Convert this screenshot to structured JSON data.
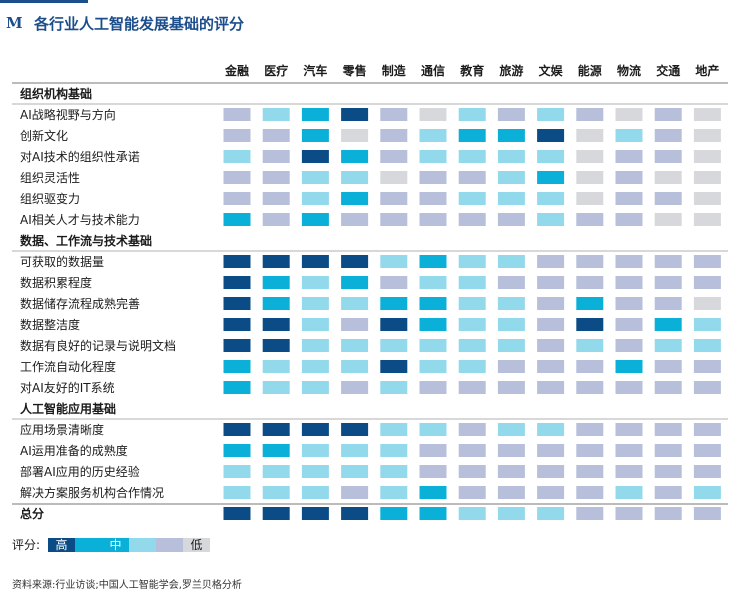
{
  "header": {
    "logo": "M",
    "title": "各行业人工智能发展基础的评分"
  },
  "legend": {
    "label": "评分:",
    "high": "高",
    "mid": "中",
    "low": "低"
  },
  "source": "资料来源:行业访谈;中国人工智能学会,罗兰贝格分析",
  "colors": {
    "5": "#0b4c86",
    "4": "#0ab0d8",
    "3": "#93d9ec",
    "2": "#b7bfda",
    "1": "#d7d8db"
  },
  "chart_data": {
    "type": "heatmap",
    "title": "各行业人工智能发展基础的评分",
    "scale": "1=低 … 5=高",
    "industries": [
      "金融",
      "医疗",
      "汽车",
      "零售",
      "制造",
      "通信",
      "教育",
      "旅游",
      "文娱",
      "能源",
      "物流",
      "交通",
      "地产"
    ],
    "sections": [
      {
        "title": "组织机构基础",
        "rows": [
          {
            "label": "AI战略视野与方向",
            "values": [
              2,
              3,
              4,
              5,
              2,
              1,
              3,
              2,
              3,
              2,
              1,
              2,
              1
            ]
          },
          {
            "label": "创新文化",
            "values": [
              2,
              2,
              4,
              1,
              2,
              3,
              4,
              4,
              5,
              1,
              3,
              2,
              1
            ]
          },
          {
            "label": "对AI技术的组织性承诺",
            "values": [
              3,
              2,
              5,
              4,
              2,
              3,
              3,
              3,
              3,
              1,
              2,
              2,
              1
            ]
          },
          {
            "label": "组织灵活性",
            "values": [
              2,
              2,
              3,
              3,
              1,
              2,
              2,
              3,
              4,
              1,
              2,
              1,
              1
            ]
          },
          {
            "label": "组织驱变力",
            "values": [
              2,
              2,
              3,
              4,
              2,
              2,
              3,
              3,
              3,
              1,
              2,
              2,
              1
            ]
          },
          {
            "label": "AI相关人才与技术能力",
            "values": [
              4,
              2,
              4,
              2,
              2,
              2,
              2,
              2,
              3,
              2,
              2,
              1,
              1
            ]
          }
        ]
      },
      {
        "title": "数据、工作流与技术基础",
        "rows": [
          {
            "label": "可获取的数据量",
            "values": [
              5,
              5,
              5,
              5,
              3,
              4,
              3,
              3,
              2,
              2,
              2,
              2,
              2
            ]
          },
          {
            "label": "数据积累程度",
            "values": [
              5,
              4,
              3,
              4,
              2,
              3,
              3,
              2,
              2,
              2,
              2,
              2,
              2
            ]
          },
          {
            "label": "数据储存流程成熟完善",
            "values": [
              5,
              4,
              3,
              3,
              4,
              4,
              3,
              3,
              2,
              4,
              2,
              2,
              1
            ]
          },
          {
            "label": "数据整洁度",
            "values": [
              5,
              5,
              3,
              2,
              5,
              4,
              3,
              3,
              2,
              5,
              2,
              4,
              3
            ]
          },
          {
            "label": "数据有良好的记录与说明文档",
            "values": [
              5,
              5,
              3,
              3,
              3,
              3,
              3,
              3,
              2,
              3,
              2,
              3,
              3
            ]
          },
          {
            "label": "工作流自动化程度",
            "values": [
              4,
              3,
              3,
              3,
              5,
              3,
              3,
              2,
              2,
              2,
              4,
              2,
              2
            ]
          },
          {
            "label": "对AI友好的IT系统",
            "values": [
              4,
              3,
              3,
              2,
              3,
              2,
              2,
              2,
              2,
              2,
              2,
              2,
              2
            ]
          }
        ]
      },
      {
        "title": "人工智能应用基础",
        "rows": [
          {
            "label": "应用场景清晰度",
            "values": [
              5,
              5,
              5,
              5,
              3,
              3,
              2,
              3,
              3,
              2,
              2,
              2,
              2
            ]
          },
          {
            "label": "AI运用准备的成熟度",
            "values": [
              4,
              4,
              3,
              3,
              3,
              2,
              2,
              2,
              2,
              2,
              2,
              2,
              2
            ]
          },
          {
            "label": "部署AI应用的历史经验",
            "values": [
              3,
              3,
              3,
              3,
              3,
              2,
              2,
              2,
              2,
              2,
              2,
              2,
              2
            ]
          },
          {
            "label": "解决方案服务机构合作情况",
            "values": [
              3,
              3,
              3,
              2,
              3,
              4,
              2,
              2,
              2,
              2,
              3,
              2,
              3
            ]
          }
        ]
      }
    ],
    "total": {
      "label": "总分",
      "values": [
        5,
        5,
        5,
        5,
        4,
        4,
        3,
        3,
        3,
        2,
        2,
        2,
        2
      ]
    }
  }
}
